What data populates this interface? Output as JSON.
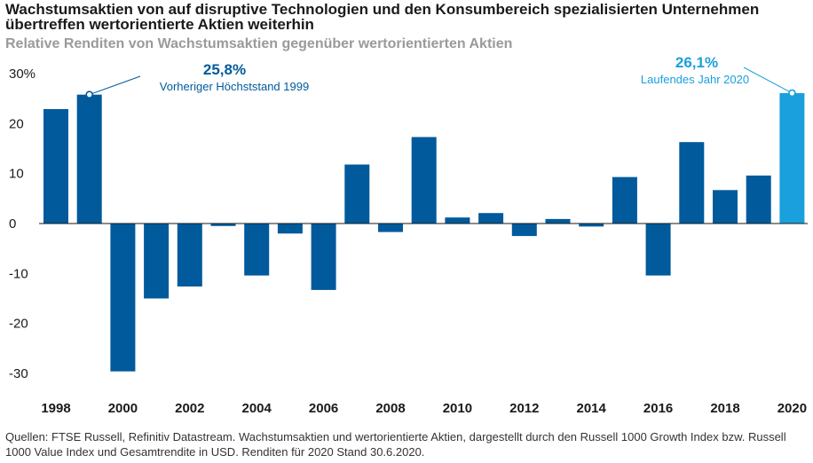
{
  "chart_data": {
    "type": "bar",
    "title": "Wachstumsaktien von auf disruptive Technologien und den Konsumbereich spezialisierten Unternehmen übertreffen wertorientierte Aktien weiterhin",
    "subtitle": "Relative Renditen von Wachstumsaktien gegenüber wertorientierten Aktien",
    "xlabel": "",
    "ylabel": "",
    "categories": [
      "1998",
      "1999",
      "2000",
      "2001",
      "2002",
      "2003",
      "2004",
      "2005",
      "2006",
      "2007",
      "2008",
      "2009",
      "2010",
      "2011",
      "2012",
      "2013",
      "2014",
      "2015",
      "2016",
      "2017",
      "2018",
      "2019",
      "2020"
    ],
    "values": [
      22.9,
      25.8,
      -29.6,
      -15.0,
      -12.6,
      -0.5,
      -10.4,
      -2.0,
      -13.3,
      11.8,
      -1.7,
      17.3,
      1.2,
      2.1,
      -2.5,
      0.9,
      -0.6,
      9.3,
      -10.4,
      16.3,
      6.7,
      9.6,
      26.1
    ],
    "highlight_index": 22,
    "ylim": [
      -32,
      30
    ],
    "yticks": [
      30,
      20,
      10,
      0,
      -10,
      -20,
      -30
    ],
    "ytick_labels": [
      "30%",
      "20",
      "10",
      "0",
      "-10",
      "-20",
      "-30"
    ],
    "xtick_labels": [
      "1998",
      "2000",
      "2002",
      "2004",
      "2006",
      "2008",
      "2010",
      "2012",
      "2014",
      "2016",
      "2018",
      "2020"
    ],
    "colors": {
      "bar": "#005a9c",
      "highlight": "#1aa0dc",
      "axis": "#1a1a1a"
    },
    "annotations": [
      {
        "index": 1,
        "value_label": "25,8%",
        "text": "Vorheriger Höchststand 1999",
        "color": "#005a9c"
      },
      {
        "index": 22,
        "value_label": "26,1%",
        "text": "Laufendes Jahr 2020",
        "color": "#1aa0dc"
      }
    ]
  },
  "footer": "Quellen: FTSE Russell, Refinitiv Datastream. Wachstumsaktien und wertorientierte Aktien, dargestellt durch den Russell 1000 Growth Index bzw. Russell 1000 Value Index und Gesamtrendite in USD. Renditen für 2020 Stand 30.6.2020."
}
